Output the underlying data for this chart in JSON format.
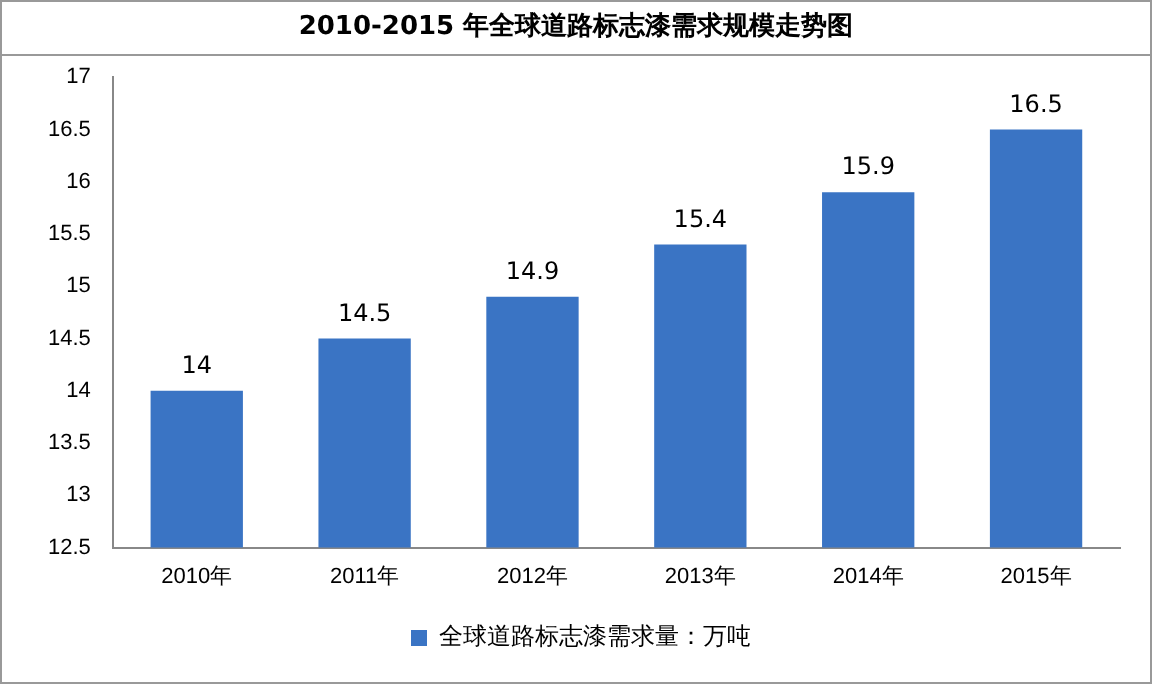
{
  "chart_data": {
    "type": "bar",
    "title": "2010-2015 年全球道路标志漆需求规模走势图",
    "categories": [
      "2010年",
      "2011年",
      "2012年",
      "2013年",
      "2014年",
      "2015年"
    ],
    "series": [
      {
        "name": "全球道路标志漆需求量：万吨",
        "color": "#3a74c4",
        "values": [
          14,
          14.5,
          14.9,
          15.4,
          15.9,
          16.5
        ]
      }
    ],
    "ylim": [
      12.5,
      17
    ],
    "yticks": [
      12.5,
      13,
      13.5,
      14,
      14.5,
      15,
      15.5,
      16,
      16.5,
      17
    ],
    "grid": false,
    "legend": "bottom",
    "data_labels": true
  }
}
